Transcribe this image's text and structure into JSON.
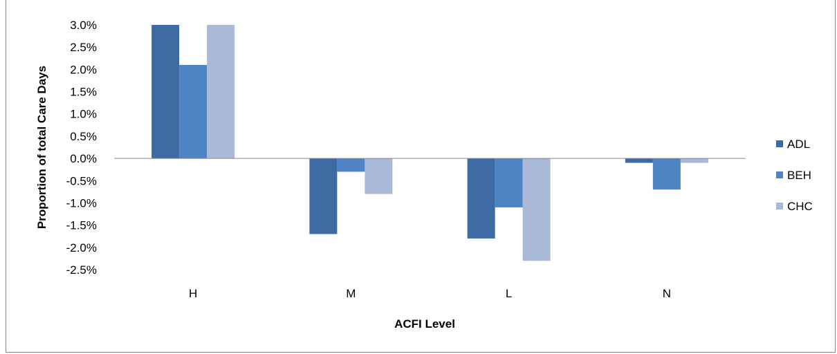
{
  "chart_data": {
    "type": "bar",
    "categories": [
      "H",
      "M",
      "L",
      "N"
    ],
    "series": [
      {
        "name": "ADL",
        "values": [
          3.0,
          -1.7,
          -1.8,
          -0.1
        ],
        "color": "#3E6AA3"
      },
      {
        "name": "BEH",
        "values": [
          2.1,
          -0.3,
          -1.1,
          -0.7
        ],
        "color": "#4F84C4"
      },
      {
        "name": "CHC",
        "values": [
          3.0,
          -0.8,
          -2.3,
          -0.1
        ],
        "color": "#AAB9D8"
      }
    ],
    "xlabel": "ACFI Level",
    "ylabel": "Proportion of total Care Days",
    "ylim": [
      -2.5,
      3.0
    ],
    "y_ticks": [
      "3.0%",
      "2.5%",
      "2.0%",
      "1.5%",
      "1.0%",
      "0.5%",
      "0.0%",
      "-0.5%",
      "-1.0%",
      "-1.5%",
      "-2.0%",
      "-2.5%"
    ],
    "y_tick_values": [
      3.0,
      2.5,
      2.0,
      1.5,
      1.0,
      0.5,
      0.0,
      -0.5,
      -1.0,
      -1.5,
      -2.0,
      -2.5
    ],
    "grid": false,
    "legend_position": "right"
  }
}
